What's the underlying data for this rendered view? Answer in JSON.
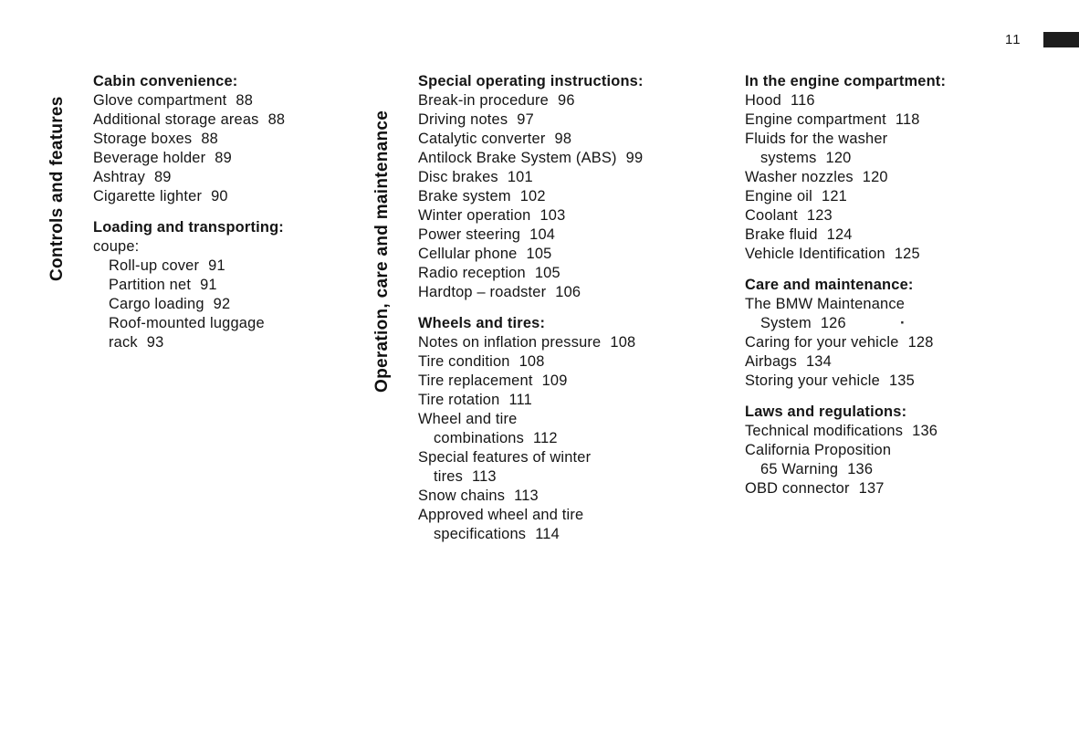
{
  "header": {
    "page_number": "11"
  },
  "colors": {
    "text": "#151515",
    "tab": "#1d1d1d",
    "background": "#ffffff"
  },
  "artifacts": {
    "dot": "·"
  },
  "columns": [
    {
      "vertical_label": "Controls and features",
      "groups": [
        {
          "heading": "Cabin convenience:",
          "lines": [
            {
              "text": "Glove compartment",
              "page": "88"
            },
            {
              "text": "Additional storage areas",
              "page": "88"
            },
            {
              "text": "Storage boxes",
              "page": "88"
            },
            {
              "text": "Beverage holder",
              "page": "89"
            },
            {
              "text": "Ashtray",
              "page": "89"
            },
            {
              "text": "Cigarette lighter",
              "page": "90"
            }
          ]
        },
        {
          "heading": "Loading and transporting:",
          "lines": [
            {
              "text": "coupe:"
            },
            {
              "text": "Roll-up cover",
              "page": "91",
              "indent": 1
            },
            {
              "text": "Partition net",
              "page": "91",
              "indent": 1
            },
            {
              "text": "Cargo loading",
              "page": "92",
              "indent": 1
            },
            {
              "text": "Roof-mounted luggage",
              "indent": 1
            },
            {
              "text": "rack",
              "page": "93",
              "indent": 1
            }
          ]
        }
      ]
    },
    {
      "vertical_label": "Operation, care and maintenance",
      "groups": [
        {
          "heading": "Special operating instructions:",
          "lines": [
            {
              "text": "Break-in procedure",
              "page": "96"
            },
            {
              "text": "Driving notes",
              "page": "97"
            },
            {
              "text": "Catalytic converter",
              "page": "98"
            },
            {
              "text": "Antilock Brake System (ABS)",
              "page": "99"
            },
            {
              "text": "Disc brakes",
              "page": "101"
            },
            {
              "text": "Brake system",
              "page": "102"
            },
            {
              "text": "Winter operation",
              "page": "103"
            },
            {
              "text": "Power steering",
              "page": "104"
            },
            {
              "text": "Cellular phone",
              "page": "105"
            },
            {
              "text": "Radio reception",
              "page": "105"
            },
            {
              "text": "Hardtop – roadster",
              "page": "106"
            }
          ]
        },
        {
          "heading": "Wheels and tires:",
          "lines": [
            {
              "text": "Notes on inflation pressure",
              "page": "108"
            },
            {
              "text": "Tire condition",
              "page": "108"
            },
            {
              "text": "Tire replacement",
              "page": "109"
            },
            {
              "text": "Tire rotation",
              "page": "111"
            },
            {
              "text": "Wheel and tire"
            },
            {
              "text": "combinations",
              "page": "112",
              "indent": 1
            },
            {
              "text": "Special features of winter"
            },
            {
              "text": "tires",
              "page": "113",
              "indent": 1
            },
            {
              "text": "Snow chains",
              "page": "113"
            },
            {
              "text": "Approved wheel and tire"
            },
            {
              "text": "specifications",
              "page": "114",
              "indent": 1
            }
          ]
        }
      ]
    },
    {
      "vertical_label": "",
      "groups": [
        {
          "heading": "In the engine compartment:",
          "lines": [
            {
              "text": "Hood",
              "page": "116"
            },
            {
              "text": "Engine compartment",
              "page": "118"
            },
            {
              "text": "Fluids for the washer"
            },
            {
              "text": "systems",
              "page": "120",
              "indent": 1
            },
            {
              "text": "Washer nozzles",
              "page": "120"
            },
            {
              "text": "Engine oil",
              "page": "121"
            },
            {
              "text": "Coolant",
              "page": "123"
            },
            {
              "text": "Brake fluid",
              "page": "124"
            },
            {
              "text": "Vehicle Identification",
              "page": "125"
            }
          ]
        },
        {
          "heading": "Care and maintenance:",
          "lines": [
            {
              "text": "The BMW Maintenance"
            },
            {
              "text": "System",
              "page": "126",
              "indent": 1
            },
            {
              "text": "Caring for your vehicle",
              "page": "128"
            },
            {
              "text": "Airbags",
              "page": "134"
            },
            {
              "text": "Storing your vehicle",
              "page": "135"
            }
          ]
        },
        {
          "heading": "Laws and regulations:",
          "lines": [
            {
              "text": "Technical modifications",
              "page": "136"
            },
            {
              "text": "California Proposition"
            },
            {
              "text": "65 Warning",
              "page": "136",
              "indent": 1
            },
            {
              "text": "OBD connector",
              "page": "137"
            }
          ]
        }
      ]
    }
  ]
}
